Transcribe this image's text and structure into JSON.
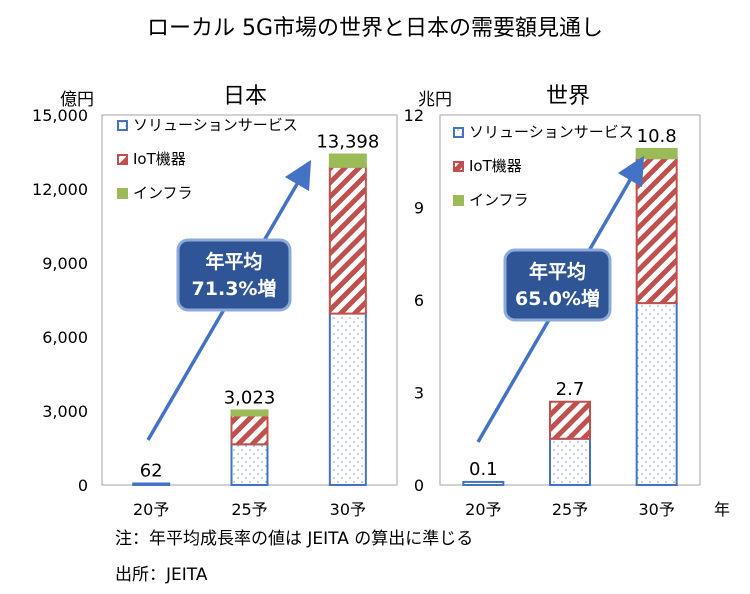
{
  "title": "ローカル 5G市場の世界と日本の需要額見通し",
  "notes": {
    "note": "注：年平均成長率の値は JEITA の算出に準じる",
    "source": "出所：JEITA"
  },
  "colors": {
    "service": "#4472c4",
    "iot": "#c0504d",
    "infra": "#9bbb59",
    "arrow": "#4472c4",
    "box_fill": "#2f5597",
    "box_stroke": "#8eaadb"
  },
  "chart_data": [
    {
      "type": "bar",
      "stacked": true,
      "title": "日本",
      "unit_label": "億円",
      "year_label": "",
      "categories": [
        "20予",
        "25予",
        "30予"
      ],
      "ylim": [
        0,
        15000
      ],
      "yticks": [
        "0",
        "3,000",
        "6,000",
        "9,000",
        "12,000",
        "15,000"
      ],
      "series": [
        {
          "name": "ソリューションサービス",
          "values": [
            62,
            1650,
            6950
          ]
        },
        {
          "name": "IoT機器",
          "values": [
            0,
            1170,
            5950
          ]
        },
        {
          "name": "インフラ",
          "values": [
            0,
            203,
            498
          ]
        }
      ],
      "totals": [
        "62",
        "3,023",
        "13,398"
      ],
      "cagr_lines": [
        "年平均",
        "71.3%増"
      ],
      "legend_position": "top-left"
    },
    {
      "type": "bar",
      "stacked": true,
      "title": "世界",
      "unit_label": "兆円",
      "year_label": "年",
      "categories": [
        "20予",
        "25予",
        "30予"
      ],
      "ylim": [
        0,
        12
      ],
      "yticks": [
        "0",
        "3",
        "6",
        "9",
        "12"
      ],
      "series": [
        {
          "name": "ソリューションサービス",
          "values": [
            0.1,
            1.5,
            5.9
          ]
        },
        {
          "name": "IoT機器",
          "values": [
            0,
            1.2,
            4.7
          ]
        },
        {
          "name": "インフラ",
          "values": [
            0,
            0.0,
            0.3
          ]
        }
      ],
      "totals": [
        "0.1",
        "2.7",
        "10.8"
      ],
      "cagr_lines": [
        "年平均",
        "65.0%増"
      ],
      "legend_position": "top-left"
    }
  ]
}
